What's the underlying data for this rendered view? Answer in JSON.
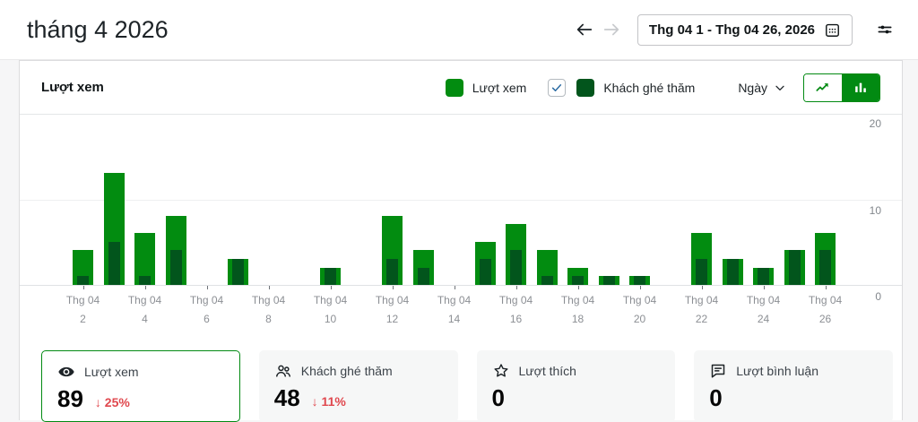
{
  "header": {
    "title": "tháng 4 2026",
    "date_range": "Thg 04 1 - Thg 04 26, 2026"
  },
  "chart_card": {
    "title": "Lượt xem",
    "legend": [
      {
        "label": "Lượt xem",
        "color": "#028c10",
        "has_checkbox": false
      },
      {
        "label": "Khách ghé thăm",
        "color": "#02551c",
        "has_checkbox": true,
        "checked": true
      }
    ],
    "interval_label": "Ngày",
    "chart_type_selected": "bar"
  },
  "chart_data": {
    "type": "bar",
    "title": "Lượt xem",
    "month_label": "Thg 04",
    "x": [
      1,
      2,
      3,
      4,
      5,
      6,
      7,
      8,
      9,
      10,
      11,
      12,
      13,
      14,
      15,
      16,
      17,
      18,
      19,
      20,
      21,
      22,
      23,
      24,
      25,
      26
    ],
    "series": [
      {
        "name": "Lượt xem",
        "color": "#028c10",
        "values": [
          0,
          4,
          13,
          6,
          8,
          0,
          3,
          0,
          0,
          2,
          0,
          8,
          4,
          0,
          5,
          7,
          4,
          2,
          1,
          1,
          0,
          6,
          3,
          2,
          4,
          6
        ]
      },
      {
        "name": "Khách ghé thăm",
        "color": "#02551c",
        "values": [
          0,
          1,
          5,
          1,
          4,
          0,
          3,
          0,
          0,
          2,
          0,
          3,
          2,
          0,
          3,
          4,
          1,
          1,
          1,
          1,
          0,
          3,
          3,
          2,
          4,
          4
        ]
      }
    ],
    "ylim": [
      0,
      20
    ],
    "yticks": [
      20,
      10,
      0
    ],
    "xtick_days": [
      2,
      4,
      6,
      8,
      10,
      12,
      14,
      16,
      18,
      20,
      22,
      24,
      26
    ],
    "grid": "horizontal",
    "legend_position": "top-right"
  },
  "summary_cards": [
    {
      "icon": "eye-icon",
      "label": "Lượt xem",
      "value": "89",
      "trend": "25%",
      "trend_dir": "down",
      "trend_color": "#e0484e",
      "selected": true
    },
    {
      "icon": "people-icon",
      "label": "Khách ghé thăm",
      "value": "48",
      "trend": "11%",
      "trend_dir": "down",
      "trend_color": "#e0484e",
      "selected": false
    },
    {
      "icon": "star-icon",
      "label": "Lượt thích",
      "value": "0",
      "trend": null,
      "selected": false
    },
    {
      "icon": "comment-icon",
      "label": "Lượt bình luận",
      "value": "0",
      "trend": null,
      "selected": false
    }
  ],
  "colors": {
    "accent_green": "#028a12",
    "views_bar": "#028c10",
    "visitors_bar": "#02551c",
    "trend_red": "#e0484e",
    "checkbox_check": "#2e6da4"
  }
}
